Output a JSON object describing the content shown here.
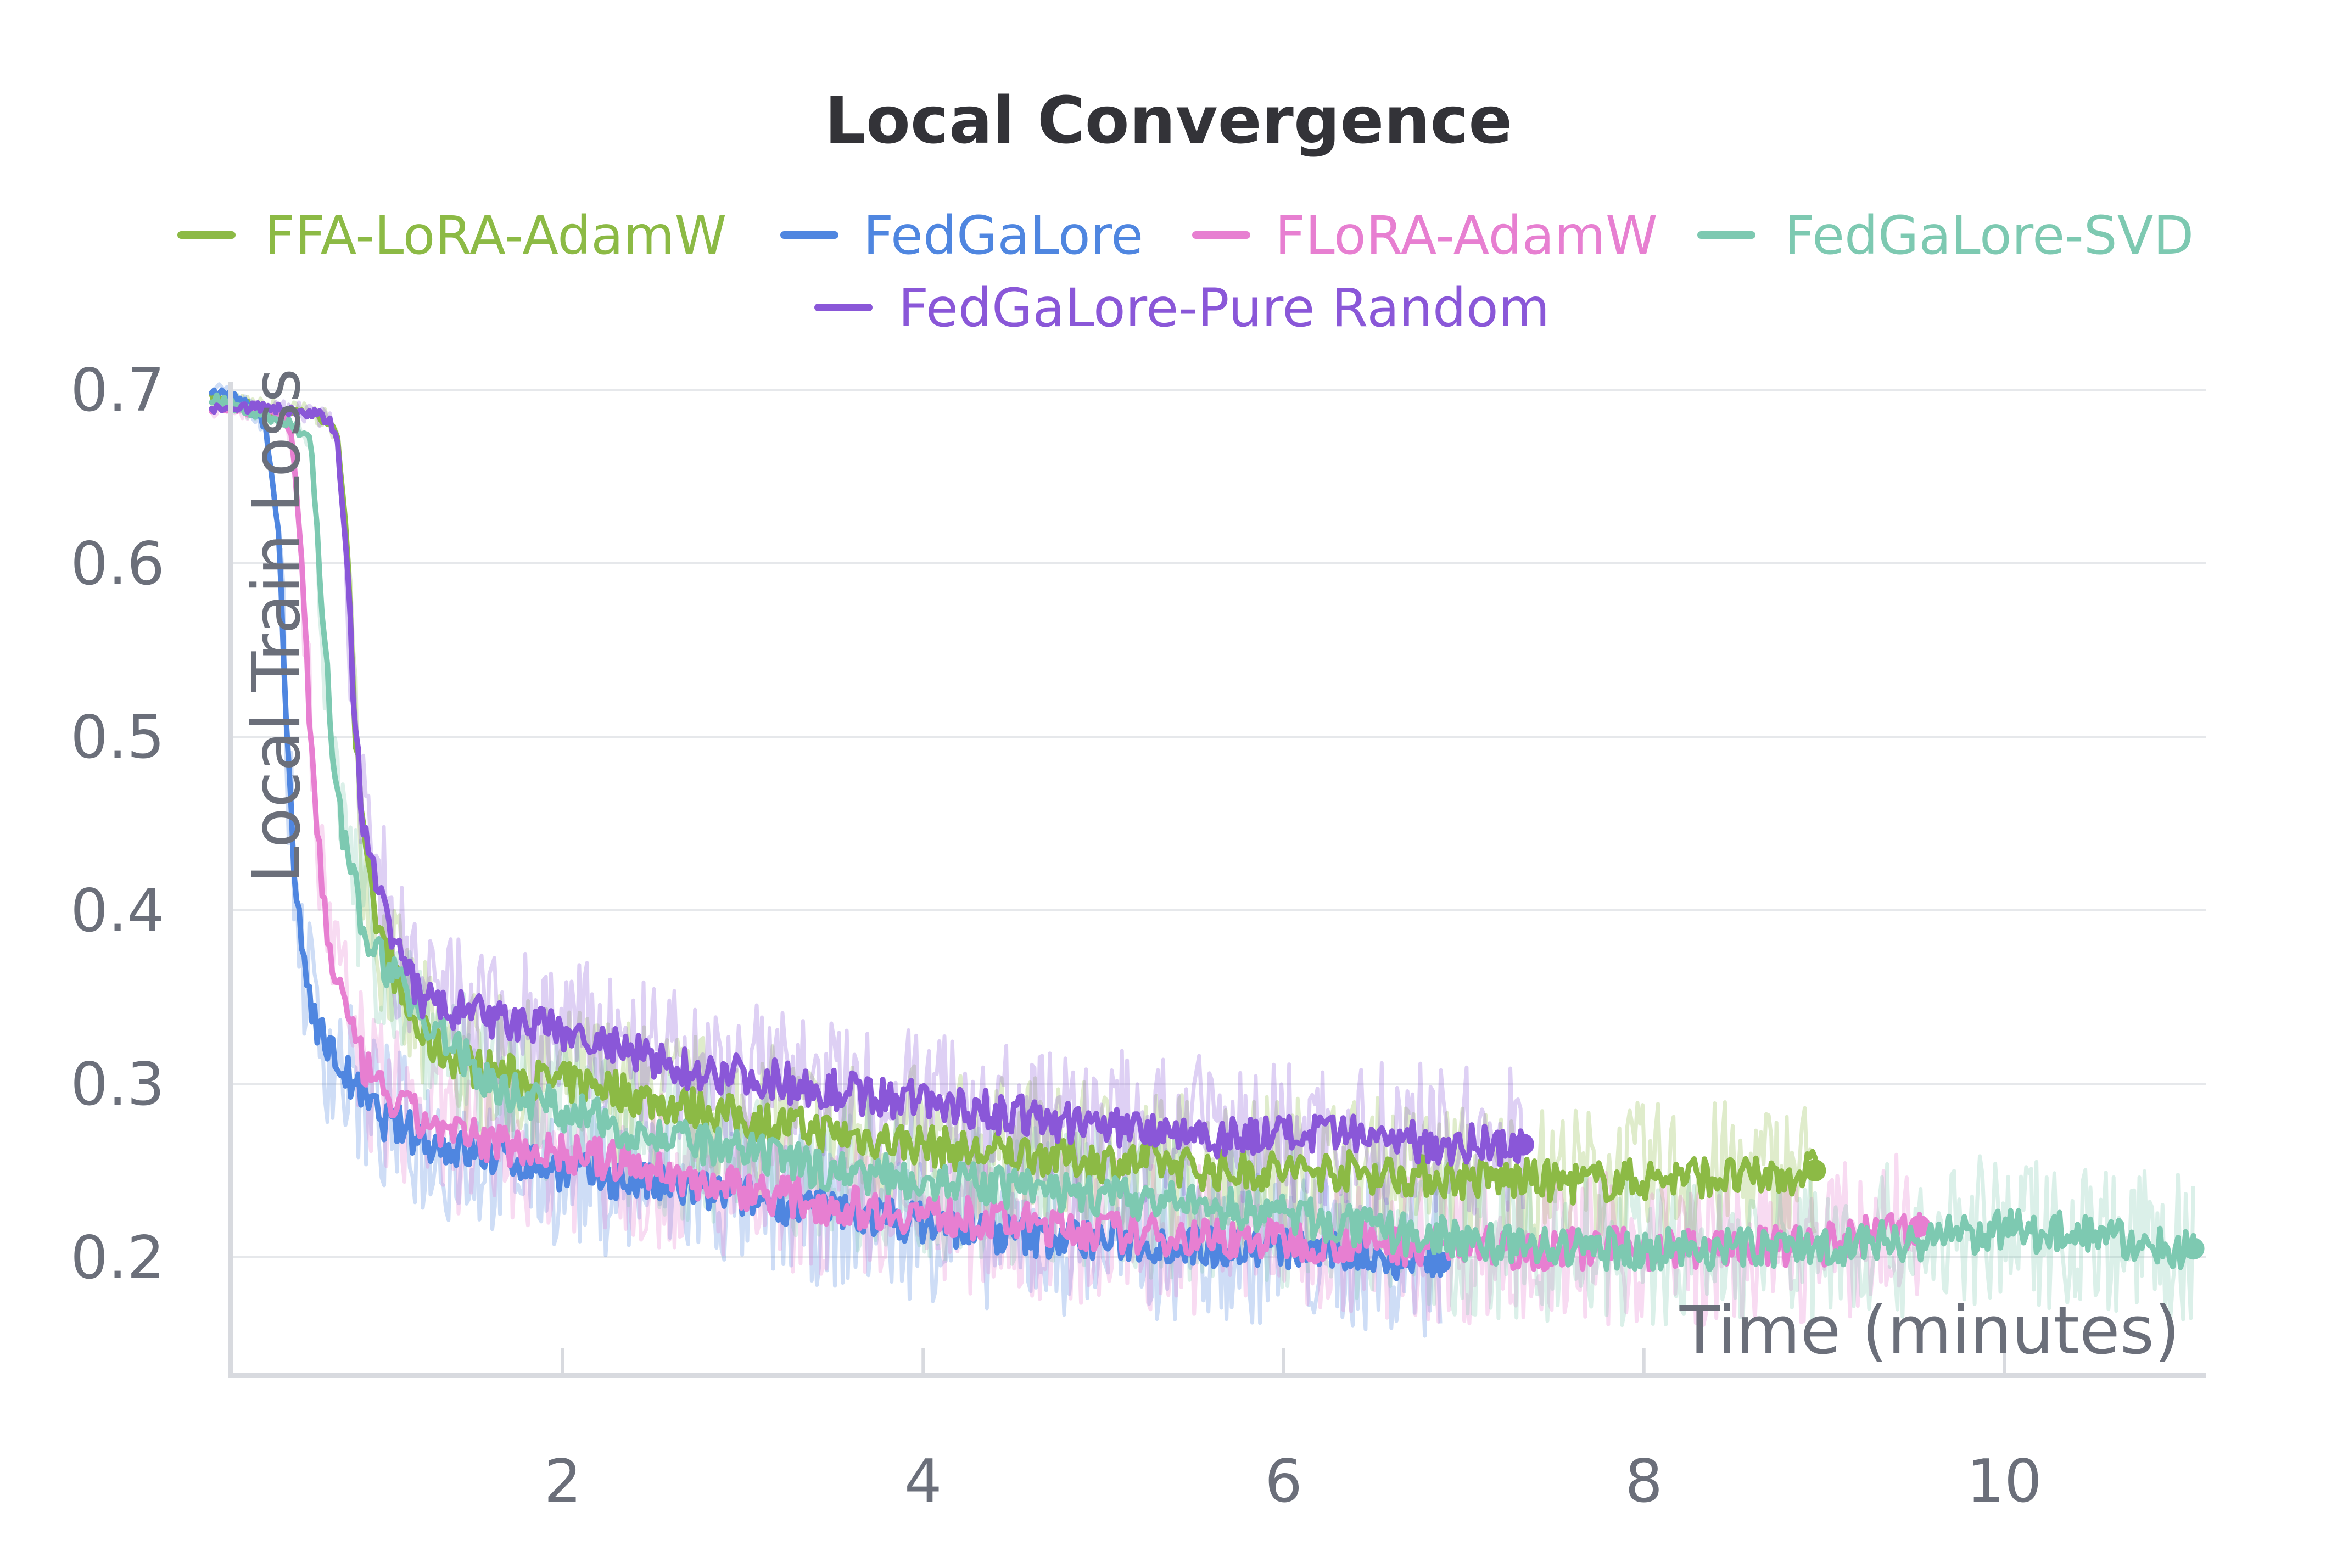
{
  "chart_data": {
    "type": "line",
    "title": "Local Convergence",
    "xlabel": "Time (minutes)",
    "ylabel": "Local Train Loss",
    "xlim": [
      0.0,
      11.1
    ],
    "ylim": [
      0.14,
      0.71
    ],
    "x_ticks": [
      {
        "value": 2,
        "label": "2"
      },
      {
        "value": 4,
        "label": "4"
      },
      {
        "value": 6,
        "label": "6"
      },
      {
        "value": 8,
        "label": "8"
      },
      {
        "value": 10,
        "label": "10"
      }
    ],
    "y_ticks": [
      {
        "value": 0.2,
        "label": "0.2"
      },
      {
        "value": 0.3,
        "label": "0.3"
      },
      {
        "value": 0.4,
        "label": "0.4"
      },
      {
        "value": 0.5,
        "label": "0.5"
      },
      {
        "value": 0.6,
        "label": "0.6"
      },
      {
        "value": 0.7,
        "label": "0.7"
      }
    ],
    "grid": true,
    "legend_position": "top",
    "series": [
      {
        "name": "FFA-LoRA-AdamW",
        "color": "#8cba45",
        "x": [
          0.05,
          0.3,
          0.5,
          0.62,
          0.7,
          0.75,
          0.8,
          0.85,
          0.9,
          0.95,
          1.0,
          1.05,
          1.1,
          1.2,
          1.3,
          1.5,
          1.7,
          2.0,
          2.2,
          2.5,
          2.8,
          3.0,
          3.3,
          3.6,
          4.0,
          4.3,
          4.6,
          5.0,
          5.3,
          5.6,
          6.0,
          6.3,
          6.6,
          7.0,
          7.3,
          7.6,
          8.0,
          8.3,
          8.6,
          8.95
        ],
        "y": [
          0.695,
          0.69,
          0.688,
          0.686,
          0.682,
          0.67,
          0.62,
          0.5,
          0.43,
          0.4,
          0.38,
          0.37,
          0.35,
          0.33,
          0.32,
          0.31,
          0.305,
          0.3,
          0.3,
          0.29,
          0.285,
          0.28,
          0.275,
          0.27,
          0.265,
          0.26,
          0.26,
          0.255,
          0.255,
          0.25,
          0.25,
          0.25,
          0.248,
          0.245,
          0.245,
          0.243,
          0.245,
          0.247,
          0.245,
          0.25
        ]
      },
      {
        "name": "FedGaLore",
        "color": "#4f86e0",
        "x": [
          0.05,
          0.2,
          0.35,
          0.42,
          0.47,
          0.5,
          0.55,
          0.6,
          0.65,
          0.7,
          0.8,
          0.9,
          1.0,
          1.1,
          1.3,
          1.5,
          1.8,
          2.0,
          2.3,
          2.6,
          3.0,
          3.3,
          3.6,
          4.0,
          4.3,
          4.6,
          5.0,
          5.3,
          5.6,
          6.0,
          6.3,
          6.6,
          6.87
        ],
        "y": [
          0.7,
          0.695,
          0.68,
          0.62,
          0.5,
          0.43,
          0.38,
          0.35,
          0.33,
          0.32,
          0.305,
          0.29,
          0.28,
          0.275,
          0.265,
          0.26,
          0.255,
          0.25,
          0.245,
          0.24,
          0.235,
          0.23,
          0.225,
          0.22,
          0.215,
          0.212,
          0.21,
          0.208,
          0.206,
          0.205,
          0.203,
          0.2,
          0.197
        ]
      },
      {
        "name": "FLoRA-AdamW",
        "color": "#e77fd1",
        "x": [
          0.05,
          0.3,
          0.45,
          0.5,
          0.55,
          0.6,
          0.65,
          0.7,
          0.75,
          0.8,
          0.85,
          0.95,
          1.05,
          1.2,
          1.4,
          1.7,
          2.0,
          2.3,
          2.7,
          3.0,
          3.5,
          4.0,
          4.5,
          5.0,
          5.5,
          6.0,
          6.5,
          7.0,
          7.5,
          8.0,
          8.5,
          9.0,
          9.53
        ],
        "y": [
          0.69,
          0.688,
          0.686,
          0.67,
          0.6,
          0.5,
          0.43,
          0.38,
          0.36,
          0.34,
          0.32,
          0.3,
          0.29,
          0.28,
          0.27,
          0.265,
          0.26,
          0.255,
          0.245,
          0.24,
          0.23,
          0.225,
          0.22,
          0.215,
          0.212,
          0.21,
          0.208,
          0.206,
          0.205,
          0.205,
          0.205,
          0.207,
          0.218
        ]
      },
      {
        "name": "FedGaLore-SVD",
        "color": "#7dc9b1",
        "x": [
          0.05,
          0.2,
          0.35,
          0.5,
          0.6,
          0.65,
          0.7,
          0.75,
          0.8,
          0.85,
          0.9,
          1.0,
          1.1,
          1.2,
          1.4,
          1.6,
          2.0,
          2.5,
          3.0,
          3.5,
          4.0,
          4.5,
          5.0,
          5.5,
          6.0,
          6.5,
          7.0,
          7.5,
          8.0,
          8.5,
          9.0,
          9.5,
          10.0,
          10.5,
          10.8,
          11.05
        ],
        "y": [
          0.695,
          0.69,
          0.685,
          0.68,
          0.67,
          0.6,
          0.52,
          0.46,
          0.43,
          0.41,
          0.39,
          0.37,
          0.36,
          0.34,
          0.32,
          0.3,
          0.285,
          0.27,
          0.26,
          0.25,
          0.245,
          0.24,
          0.235,
          0.23,
          0.225,
          0.215,
          0.21,
          0.205,
          0.205,
          0.205,
          0.207,
          0.21,
          0.215,
          0.215,
          0.205,
          0.205
        ]
      },
      {
        "name": "FedGaLore-Pure Random",
        "color": "#8a57d8",
        "x": [
          0.05,
          0.3,
          0.5,
          0.62,
          0.7,
          0.75,
          0.8,
          0.85,
          0.9,
          0.95,
          1.0,
          1.05,
          1.1,
          1.2,
          1.3,
          1.5,
          1.7,
          2.0,
          2.3,
          2.6,
          3.0,
          3.3,
          3.6,
          4.0,
          4.3,
          4.6,
          5.0,
          5.3,
          5.6,
          6.0,
          6.3,
          6.6,
          7.0,
          7.33
        ],
        "y": [
          0.69,
          0.69,
          0.688,
          0.686,
          0.683,
          0.67,
          0.6,
          0.5,
          0.44,
          0.42,
          0.41,
          0.39,
          0.37,
          0.35,
          0.345,
          0.34,
          0.335,
          0.33,
          0.32,
          0.31,
          0.305,
          0.3,
          0.295,
          0.29,
          0.285,
          0.28,
          0.275,
          0.275,
          0.27,
          0.27,
          0.27,
          0.268,
          0.265,
          0.265
        ]
      }
    ]
  }
}
